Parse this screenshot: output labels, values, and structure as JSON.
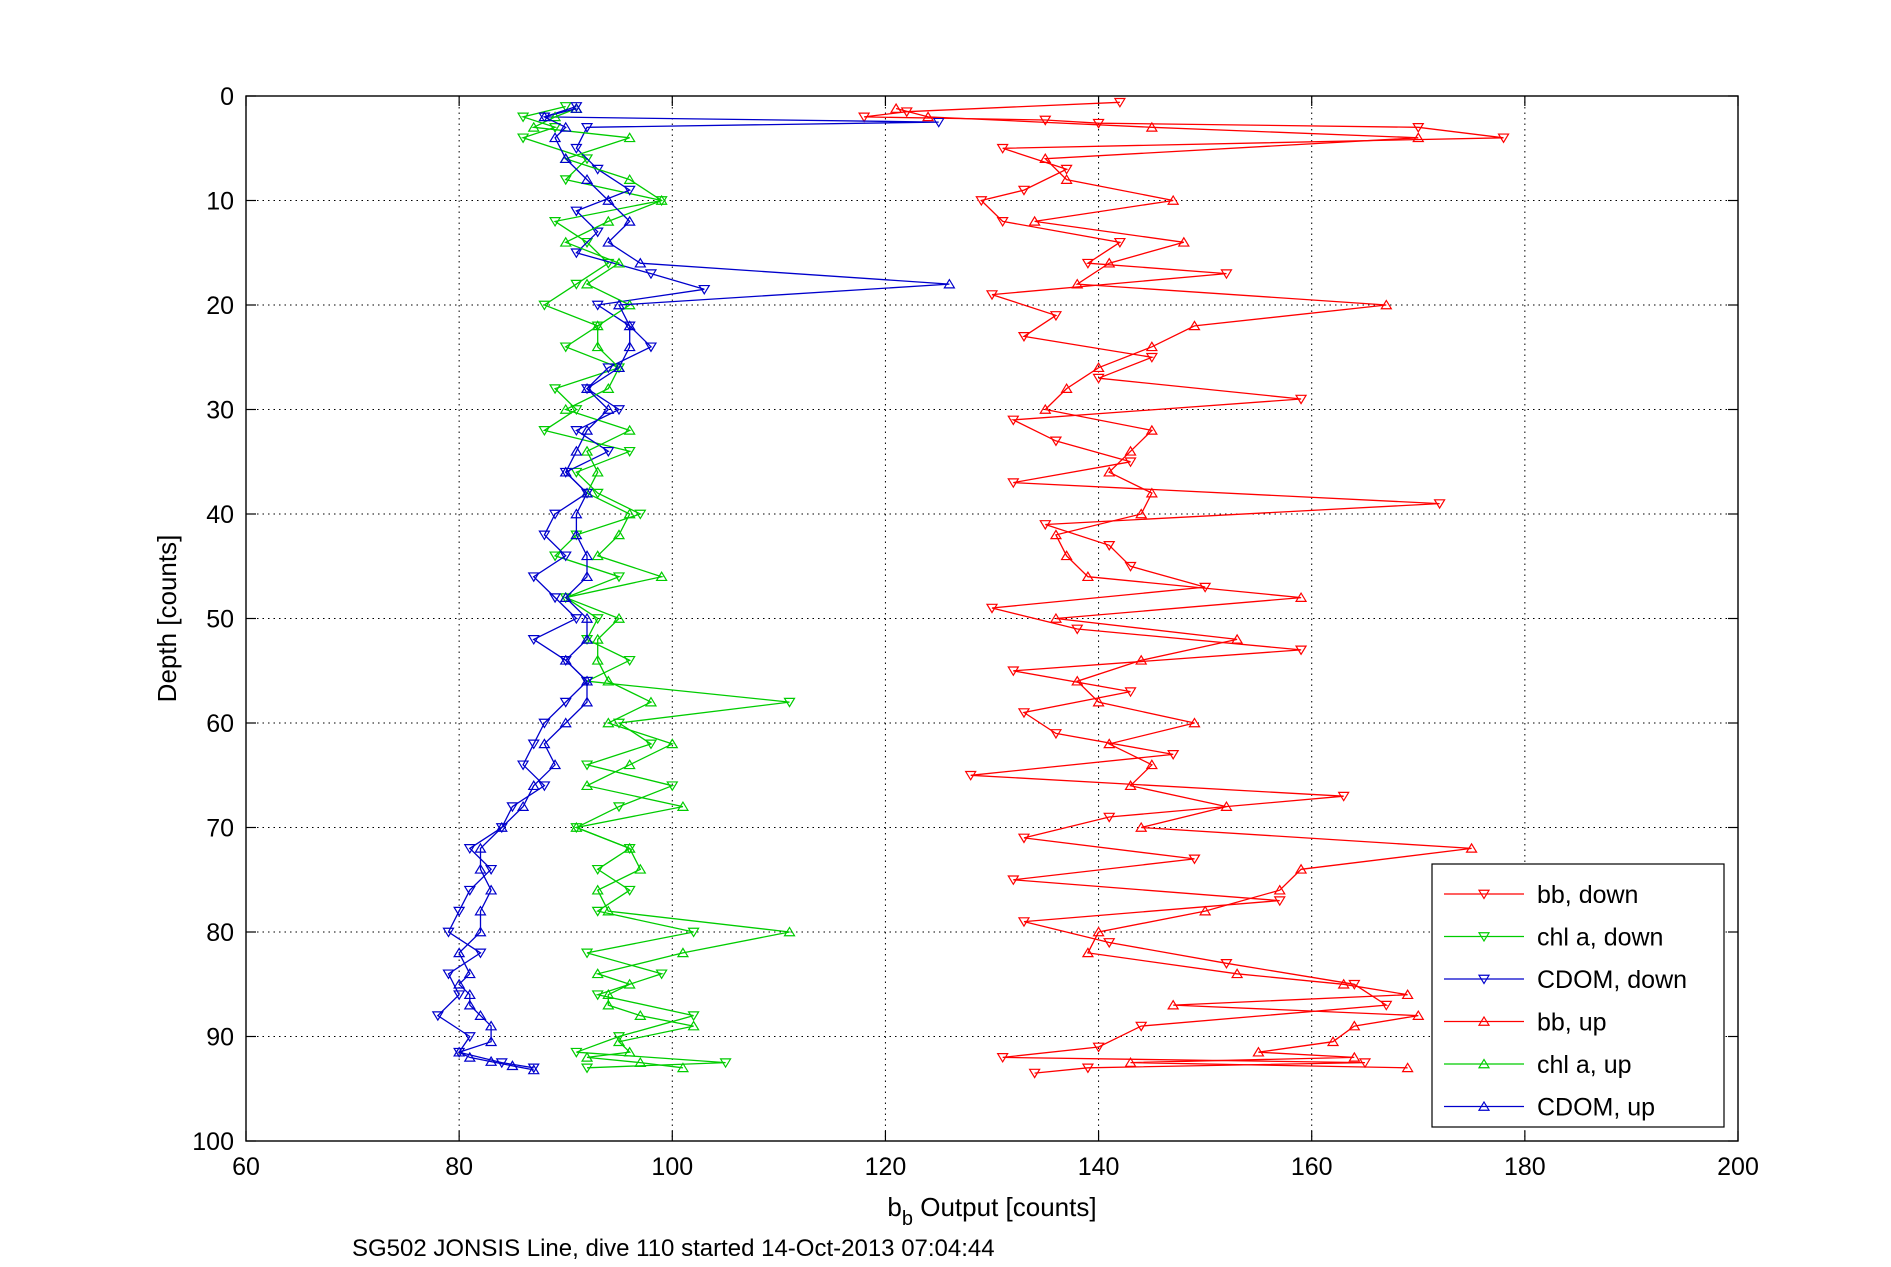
{
  "chart_data": {
    "type": "line",
    "caption": "SG502 JONSIS Line, dive 110 started 14-Oct-2013 07:04:44",
    "xlabel": {
      "main": "b",
      "sub": "b",
      "rest": " Output [counts]"
    },
    "ylabel": "Depth [counts]",
    "xlim": [
      60,
      200
    ],
    "ylim": [
      0,
      100
    ],
    "y_reversed": true,
    "grid": true,
    "x_ticks": [
      "60",
      "80",
      "100",
      "120",
      "140",
      "160",
      "180",
      "200"
    ],
    "y_ticks": [
      "0",
      "10",
      "20",
      "30",
      "40",
      "50",
      "60",
      "70",
      "80",
      "90",
      "100"
    ],
    "legend_position": "lower-right",
    "series": [
      {
        "name": "bb, down",
        "color": "#ff0000",
        "marker": "triangle-down",
        "depth": [
          0.6,
          1.5,
          2,
          2.3,
          2.6,
          3,
          4,
          5,
          7,
          9,
          10,
          12,
          14,
          16,
          17,
          19,
          21,
          23,
          25,
          27,
          29,
          31,
          33,
          35,
          37,
          39,
          41,
          43,
          45,
          47,
          49,
          51,
          53,
          55,
          57,
          59,
          61,
          63,
          65,
          67,
          69,
          71,
          73,
          75,
          77,
          79,
          81,
          83,
          85,
          87,
          89,
          91,
          92,
          92.5,
          93,
          93.5
        ],
        "x": [
          142,
          122,
          118,
          135,
          140,
          170,
          178,
          131,
          137,
          133,
          129,
          131,
          142,
          139,
          152,
          130,
          136,
          133,
          145,
          140,
          159,
          132,
          136,
          143,
          132,
          172,
          135,
          141,
          143,
          150,
          130,
          138,
          159,
          132,
          143,
          133,
          136,
          147,
          128,
          163,
          141,
          133,
          149,
          132,
          157,
          133,
          141,
          152,
          164,
          167,
          144,
          140,
          131,
          165,
          139,
          134
        ]
      },
      {
        "name": "chl a, down",
        "color": "#00cc00",
        "marker": "triangle-down",
        "depth": [
          1,
          2,
          3,
          4,
          6,
          8,
          10,
          12,
          14,
          16,
          18,
          20,
          22,
          24,
          26,
          28,
          30,
          32,
          34,
          36,
          38,
          40,
          42,
          44,
          46,
          48,
          50,
          52,
          54,
          56,
          58,
          60,
          62,
          64,
          66,
          68,
          70,
          72,
          74,
          76,
          78,
          80,
          82,
          84,
          86,
          88,
          90,
          91.5,
          92.5,
          93
        ],
        "x": [
          90,
          86,
          89,
          86,
          92,
          90,
          99,
          89,
          92,
          94,
          91,
          88,
          93,
          90,
          95,
          89,
          91,
          88,
          96,
          91,
          93,
          97,
          91,
          89,
          95,
          90,
          93,
          92,
          96,
          92,
          111,
          95,
          98,
          92,
          100,
          95,
          91,
          96,
          93,
          96,
          93,
          102,
          92,
          99,
          93,
          102,
          95,
          91,
          105,
          92
        ]
      },
      {
        "name": "CDOM, down",
        "color": "#0000cc",
        "marker": "triangle-down",
        "depth": [
          1,
          2,
          2.5,
          3,
          5,
          7,
          9,
          11,
          13,
          15,
          17,
          18.5,
          20,
          22,
          24,
          26,
          28,
          30,
          32,
          34,
          36,
          38,
          40,
          42,
          44,
          46,
          48,
          50,
          52,
          54,
          56,
          58,
          60,
          62,
          64,
          66,
          68,
          70,
          72,
          74,
          76,
          78,
          80,
          82,
          84,
          86,
          88,
          90,
          91.5,
          92.5,
          93
        ],
        "x": [
          91,
          88,
          125,
          92,
          91,
          93,
          96,
          91,
          93,
          91,
          98,
          103,
          93,
          96,
          98,
          94,
          92,
          95,
          91,
          94,
          90,
          92,
          89,
          88,
          90,
          87,
          89,
          91,
          87,
          90,
          92,
          90,
          88,
          87,
          86,
          88,
          85,
          84,
          81,
          83,
          81,
          80,
          79,
          82,
          79,
          80,
          78,
          81,
          80,
          84,
          87
        ]
      },
      {
        "name": "bb, up",
        "color": "#ff0000",
        "marker": "triangle-up",
        "depth": [
          93,
          92.5,
          92,
          91.5,
          90.5,
          89,
          88,
          87,
          86,
          85,
          84,
          82,
          80,
          78,
          76,
          74,
          72,
          70,
          68,
          66,
          64,
          62,
          60,
          58,
          56,
          54,
          52,
          50,
          48,
          46,
          44,
          42,
          40,
          38,
          36,
          34,
          32,
          30,
          28,
          26,
          24,
          22,
          20,
          18,
          16,
          14,
          12,
          10,
          8,
          6,
          4,
          3,
          2,
          1.2
        ],
        "x": [
          169,
          143,
          164,
          155,
          162,
          164,
          170,
          147,
          169,
          163,
          153,
          139,
          140,
          150,
          157,
          159,
          175,
          144,
          152,
          143,
          145,
          141,
          149,
          140,
          138,
          144,
          153,
          136,
          159,
          139,
          137,
          136,
          144,
          145,
          141,
          143,
          145,
          135,
          137,
          140,
          145,
          149,
          167,
          138,
          141,
          148,
          134,
          147,
          137,
          135,
          170,
          145,
          124,
          121
        ]
      },
      {
        "name": "chl a, up",
        "color": "#00cc00",
        "marker": "triangle-up",
        "depth": [
          93,
          92.5,
          92,
          91.5,
          90.5,
          89,
          88,
          87,
          86,
          85,
          84,
          82,
          80,
          78,
          76,
          74,
          72,
          70,
          68,
          66,
          64,
          62,
          60,
          58,
          56,
          54,
          52,
          50,
          48,
          46,
          44,
          42,
          40,
          38,
          36,
          34,
          32,
          30,
          28,
          26,
          24,
          22,
          20,
          18,
          16,
          14,
          12,
          10,
          8,
          6,
          4,
          3,
          2,
          1.2
        ],
        "x": [
          101,
          97,
          92,
          96,
          95,
          102,
          97,
          94,
          94,
          96,
          93,
          101,
          111,
          94,
          93,
          97,
          96,
          91,
          101,
          92,
          96,
          100,
          94,
          98,
          94,
          93,
          93,
          95,
          90,
          99,
          93,
          95,
          96,
          92,
          93,
          92,
          96,
          90,
          94,
          95,
          93,
          93,
          96,
          92,
          95,
          90,
          94,
          99,
          96,
          90,
          96,
          87,
          89,
          91
        ]
      },
      {
        "name": "CDOM, up",
        "color": "#0000cc",
        "marker": "triangle-up",
        "depth": [
          93.2,
          92.8,
          92.4,
          92,
          91.5,
          90.5,
          89,
          88,
          87,
          86,
          85,
          84,
          82,
          80,
          78,
          76,
          74,
          72,
          70,
          68,
          66,
          64,
          62,
          60,
          58,
          56,
          54,
          52,
          50,
          48,
          46,
          44,
          42,
          40,
          38,
          36,
          34,
          32,
          30,
          28,
          26,
          24,
          22,
          20,
          18,
          16,
          14,
          12,
          10,
          8,
          6,
          4,
          3,
          2,
          1.2
        ],
        "x": [
          87,
          85,
          83,
          81,
          80,
          83,
          83,
          82,
          81,
          81,
          80,
          81,
          80,
          82,
          82,
          83,
          82,
          82,
          84,
          86,
          87,
          89,
          88,
          90,
          92,
          92,
          90,
          92,
          92,
          90,
          92,
          92,
          91,
          91,
          92,
          90,
          91,
          92,
          94,
          92,
          95,
          96,
          96,
          95,
          126,
          97,
          94,
          96,
          94,
          92,
          90,
          89,
          90,
          88,
          91
        ]
      }
    ]
  }
}
